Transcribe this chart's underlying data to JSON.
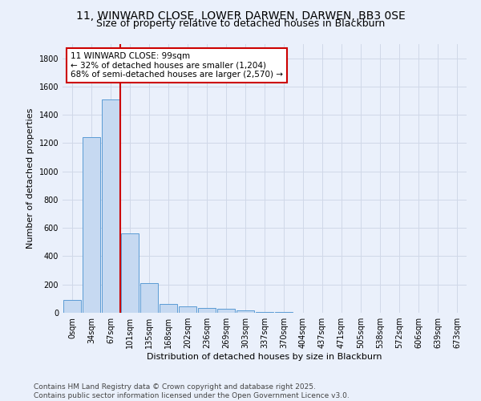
{
  "title_line1": "11, WINWARD CLOSE, LOWER DARWEN, DARWEN, BB3 0SE",
  "title_line2": "Size of property relative to detached houses in Blackburn",
  "xlabel": "Distribution of detached houses by size in Blackburn",
  "ylabel": "Number of detached properties",
  "bar_values": [
    90,
    1240,
    1510,
    560,
    210,
    65,
    45,
    35,
    28,
    15,
    8,
    3,
    2,
    1,
    1,
    0,
    0,
    0,
    0,
    0,
    0
  ],
  "bar_labels": [
    "0sqm",
    "34sqm",
    "67sqm",
    "101sqm",
    "135sqm",
    "168sqm",
    "202sqm",
    "236sqm",
    "269sqm",
    "303sqm",
    "337sqm",
    "370sqm",
    "404sqm",
    "437sqm",
    "471sqm",
    "505sqm",
    "538sqm",
    "572sqm",
    "606sqm",
    "639sqm",
    "673sqm"
  ],
  "bar_color": "#c6d9f1",
  "bar_edge_color": "#5b9bd5",
  "grid_color": "#d0d8e8",
  "vline_position": 2.5,
  "vline_color": "#cc0000",
  "annotation_text": "11 WINWARD CLOSE: 99sqm\n← 32% of detached houses are smaller (1,204)\n68% of semi-detached houses are larger (2,570) →",
  "annotation_box_color": "#ffffff",
  "annotation_box_edge": "#cc0000",
  "ylim": [
    0,
    1900
  ],
  "yticks": [
    0,
    200,
    400,
    600,
    800,
    1000,
    1200,
    1400,
    1600,
    1800
  ],
  "footer1": "Contains HM Land Registry data © Crown copyright and database right 2025.",
  "footer2": "Contains public sector information licensed under the Open Government Licence v3.0.",
  "bg_color": "#eaf0fb",
  "plot_bg_color": "#eaf0fb",
  "title_fontsize": 10,
  "subtitle_fontsize": 9,
  "label_fontsize": 8,
  "tick_fontsize": 7,
  "footer_fontsize": 6.5,
  "annot_fontsize": 7.5
}
